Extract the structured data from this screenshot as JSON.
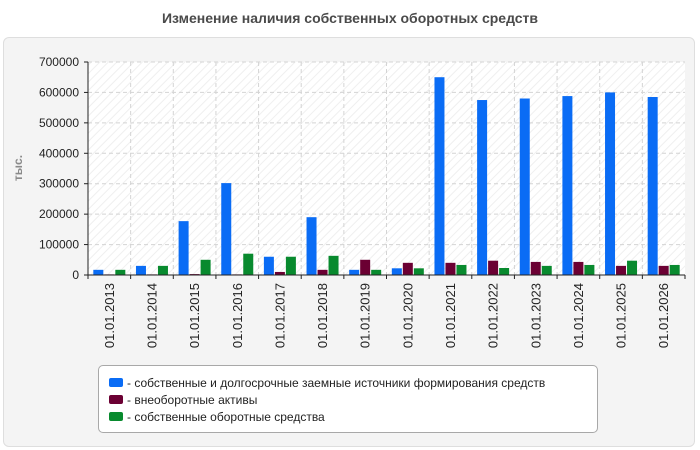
{
  "chart_data": {
    "type": "bar",
    "title": "Изменение наличия собственных оборотных средств",
    "ylabel": "тыс.",
    "xlabel": "",
    "ylim": [
      0,
      700000
    ],
    "yticks": [
      "0",
      "100000",
      "200000",
      "300000",
      "400000",
      "500000",
      "600000",
      "700000"
    ],
    "grid": true,
    "legend_position": "bottom",
    "categories": [
      "01.01.2013",
      "01.01.2014",
      "01.01.2015",
      "01.01.2016",
      "01.01.2017",
      "01.01.2018",
      "01.01.2019",
      "01.01.2020",
      "01.01.2021",
      "01.01.2022",
      "01.01.2023",
      "01.01.2024",
      "01.01.2025",
      "01.01.2026"
    ],
    "series": [
      {
        "name": "- собственные и долгосрочные заемные источники формирования средств",
        "color": "#0a6cf5",
        "values": [
          17000,
          30000,
          177000,
          302000,
          60000,
          190000,
          17000,
          22000,
          650000,
          575000,
          580000,
          588000,
          600000,
          585000
        ]
      },
      {
        "name": "- внеоборотные активы",
        "color": "#6b0033",
        "values": [
          2000,
          2000,
          3000,
          2000,
          10000,
          17000,
          50000,
          40000,
          40000,
          47000,
          43000,
          43000,
          30000,
          30000
        ]
      },
      {
        "name": "- собственные оборотные средства",
        "color": "#088a2e",
        "values": [
          17000,
          30000,
          50000,
          70000,
          60000,
          63000,
          17000,
          22000,
          33000,
          23000,
          30000,
          33000,
          47000,
          33000
        ]
      }
    ]
  }
}
